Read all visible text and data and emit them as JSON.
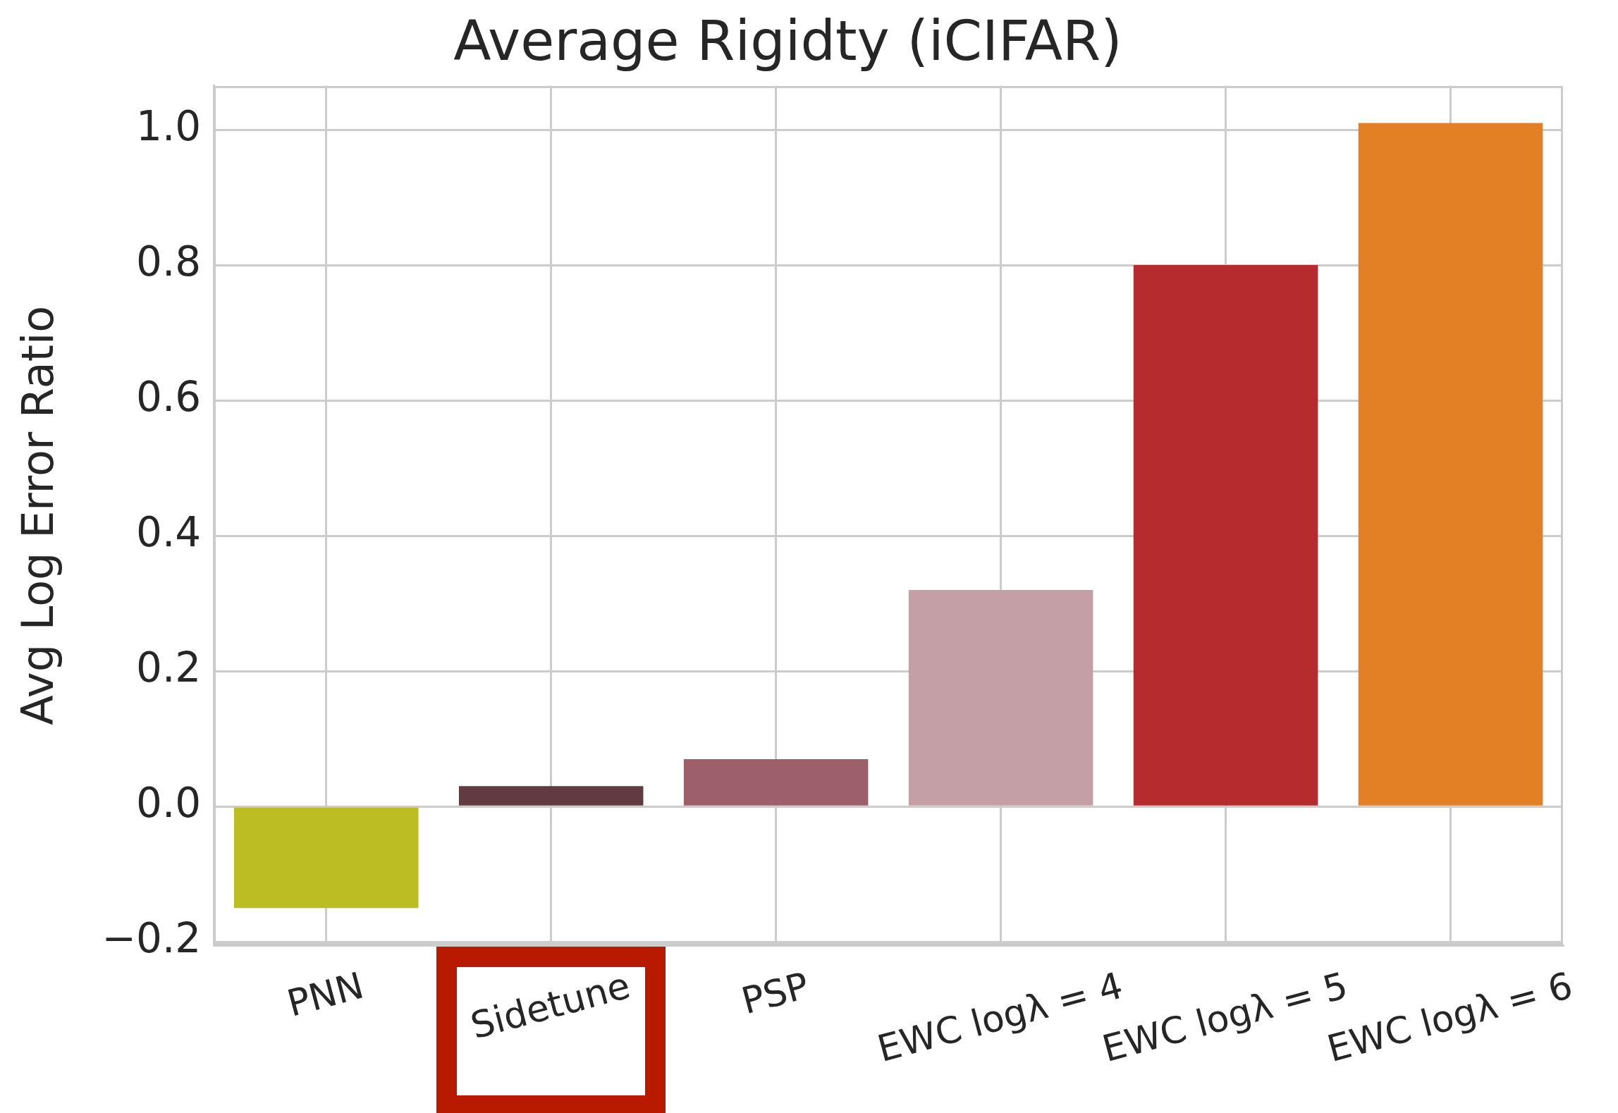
{
  "chart_data": {
    "type": "bar",
    "title": "Average Rigidty (iCIFAR)",
    "ylabel": "Avg Log Error Ratio",
    "categories": [
      "PNN",
      "Sidetune",
      "PSP",
      "EWC logλ = 4",
      "EWC logλ = 5",
      "EWC logλ = 6"
    ],
    "values": [
      -0.15,
      0.03,
      0.07,
      0.32,
      0.8,
      1.01
    ],
    "colors": [
      "#bcbd22",
      "#623a42",
      "#9e5f6c",
      "#c4a0a6",
      "#b62b2e",
      "#e37f24"
    ],
    "ylim": [
      -0.205,
      1.065
    ],
    "yticks": [
      {
        "value": -0.2,
        "label": "−0.2"
      },
      {
        "value": 0,
        "label": "0.0"
      },
      {
        "value": 0.2,
        "label": "0.2"
      },
      {
        "value": 0.4,
        "label": "0.4"
      },
      {
        "value": 0.6,
        "label": "0.6"
      },
      {
        "value": 0.8,
        "label": "0.8"
      },
      {
        "value": 1,
        "label": "1.0"
      }
    ],
    "grid": true
  }
}
